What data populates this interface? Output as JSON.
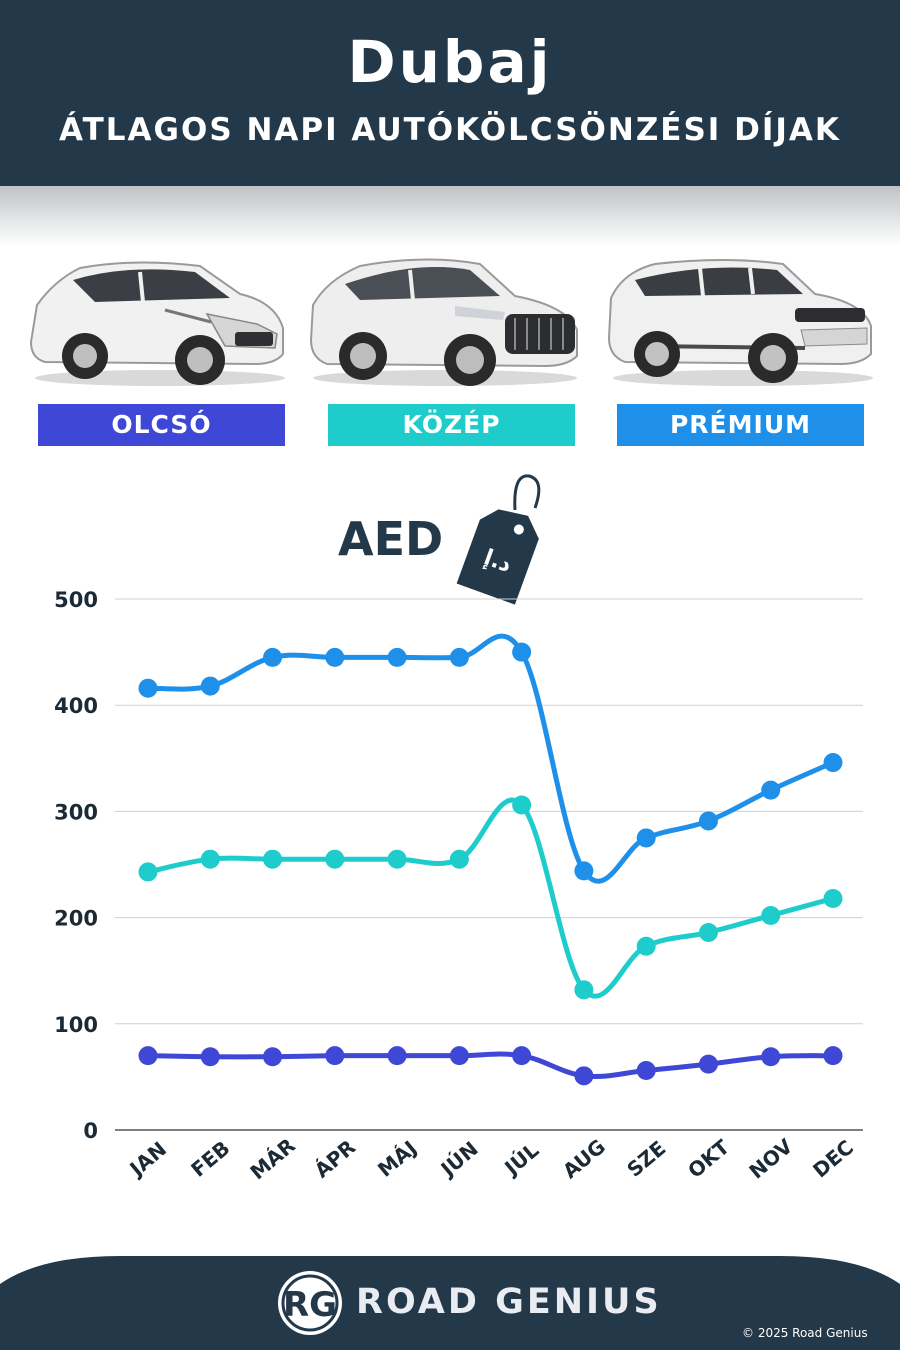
{
  "header": {
    "title": "Dubaj",
    "subtitle": "ÁTLAGOS NAPI AUTÓKÖLCSÖNZÉSI DÍJAK"
  },
  "categories": [
    {
      "label": "OLCSÓ",
      "color": "#3f48d6"
    },
    {
      "label": "KÖZÉP",
      "color": "#1ecdcb"
    },
    {
      "label": "PRÉMIUM",
      "color": "#1f90ea"
    }
  ],
  "currency": {
    "label": "AED",
    "tag_symbol": "د.إ"
  },
  "chart_data": {
    "type": "line",
    "categories": [
      "JAN",
      "FEB",
      "MÁR",
      "ÁPR",
      "MÁJ",
      "JÚN",
      "JÚL",
      "AUG",
      "SZE",
      "OKT",
      "NOV",
      "DEC"
    ],
    "series": [
      {
        "name": "PRÉMIUM",
        "color": "#1f90ea",
        "values": [
          416,
          418,
          445,
          445,
          445,
          445,
          450,
          244,
          275,
          291,
          320,
          346
        ]
      },
      {
        "name": "KÖZÉP",
        "color": "#1ecdcb",
        "values": [
          243,
          255,
          255,
          255,
          255,
          255,
          306,
          132,
          173,
          186,
          202,
          218
        ]
      },
      {
        "name": "OLCSÓ",
        "color": "#3f48d6",
        "values": [
          70,
          69,
          69,
          70,
          70,
          70,
          70,
          51,
          56,
          62,
          69,
          70
        ]
      }
    ],
    "yticks": [
      0,
      100,
      200,
      300,
      400,
      500
    ],
    "ylim": [
      0,
      500
    ],
    "grid": true
  },
  "footer": {
    "logo_text": "RG",
    "brand": "ROAD GENIUS",
    "copyright": "© 2025 Road Genius",
    "background": "#233849"
  }
}
